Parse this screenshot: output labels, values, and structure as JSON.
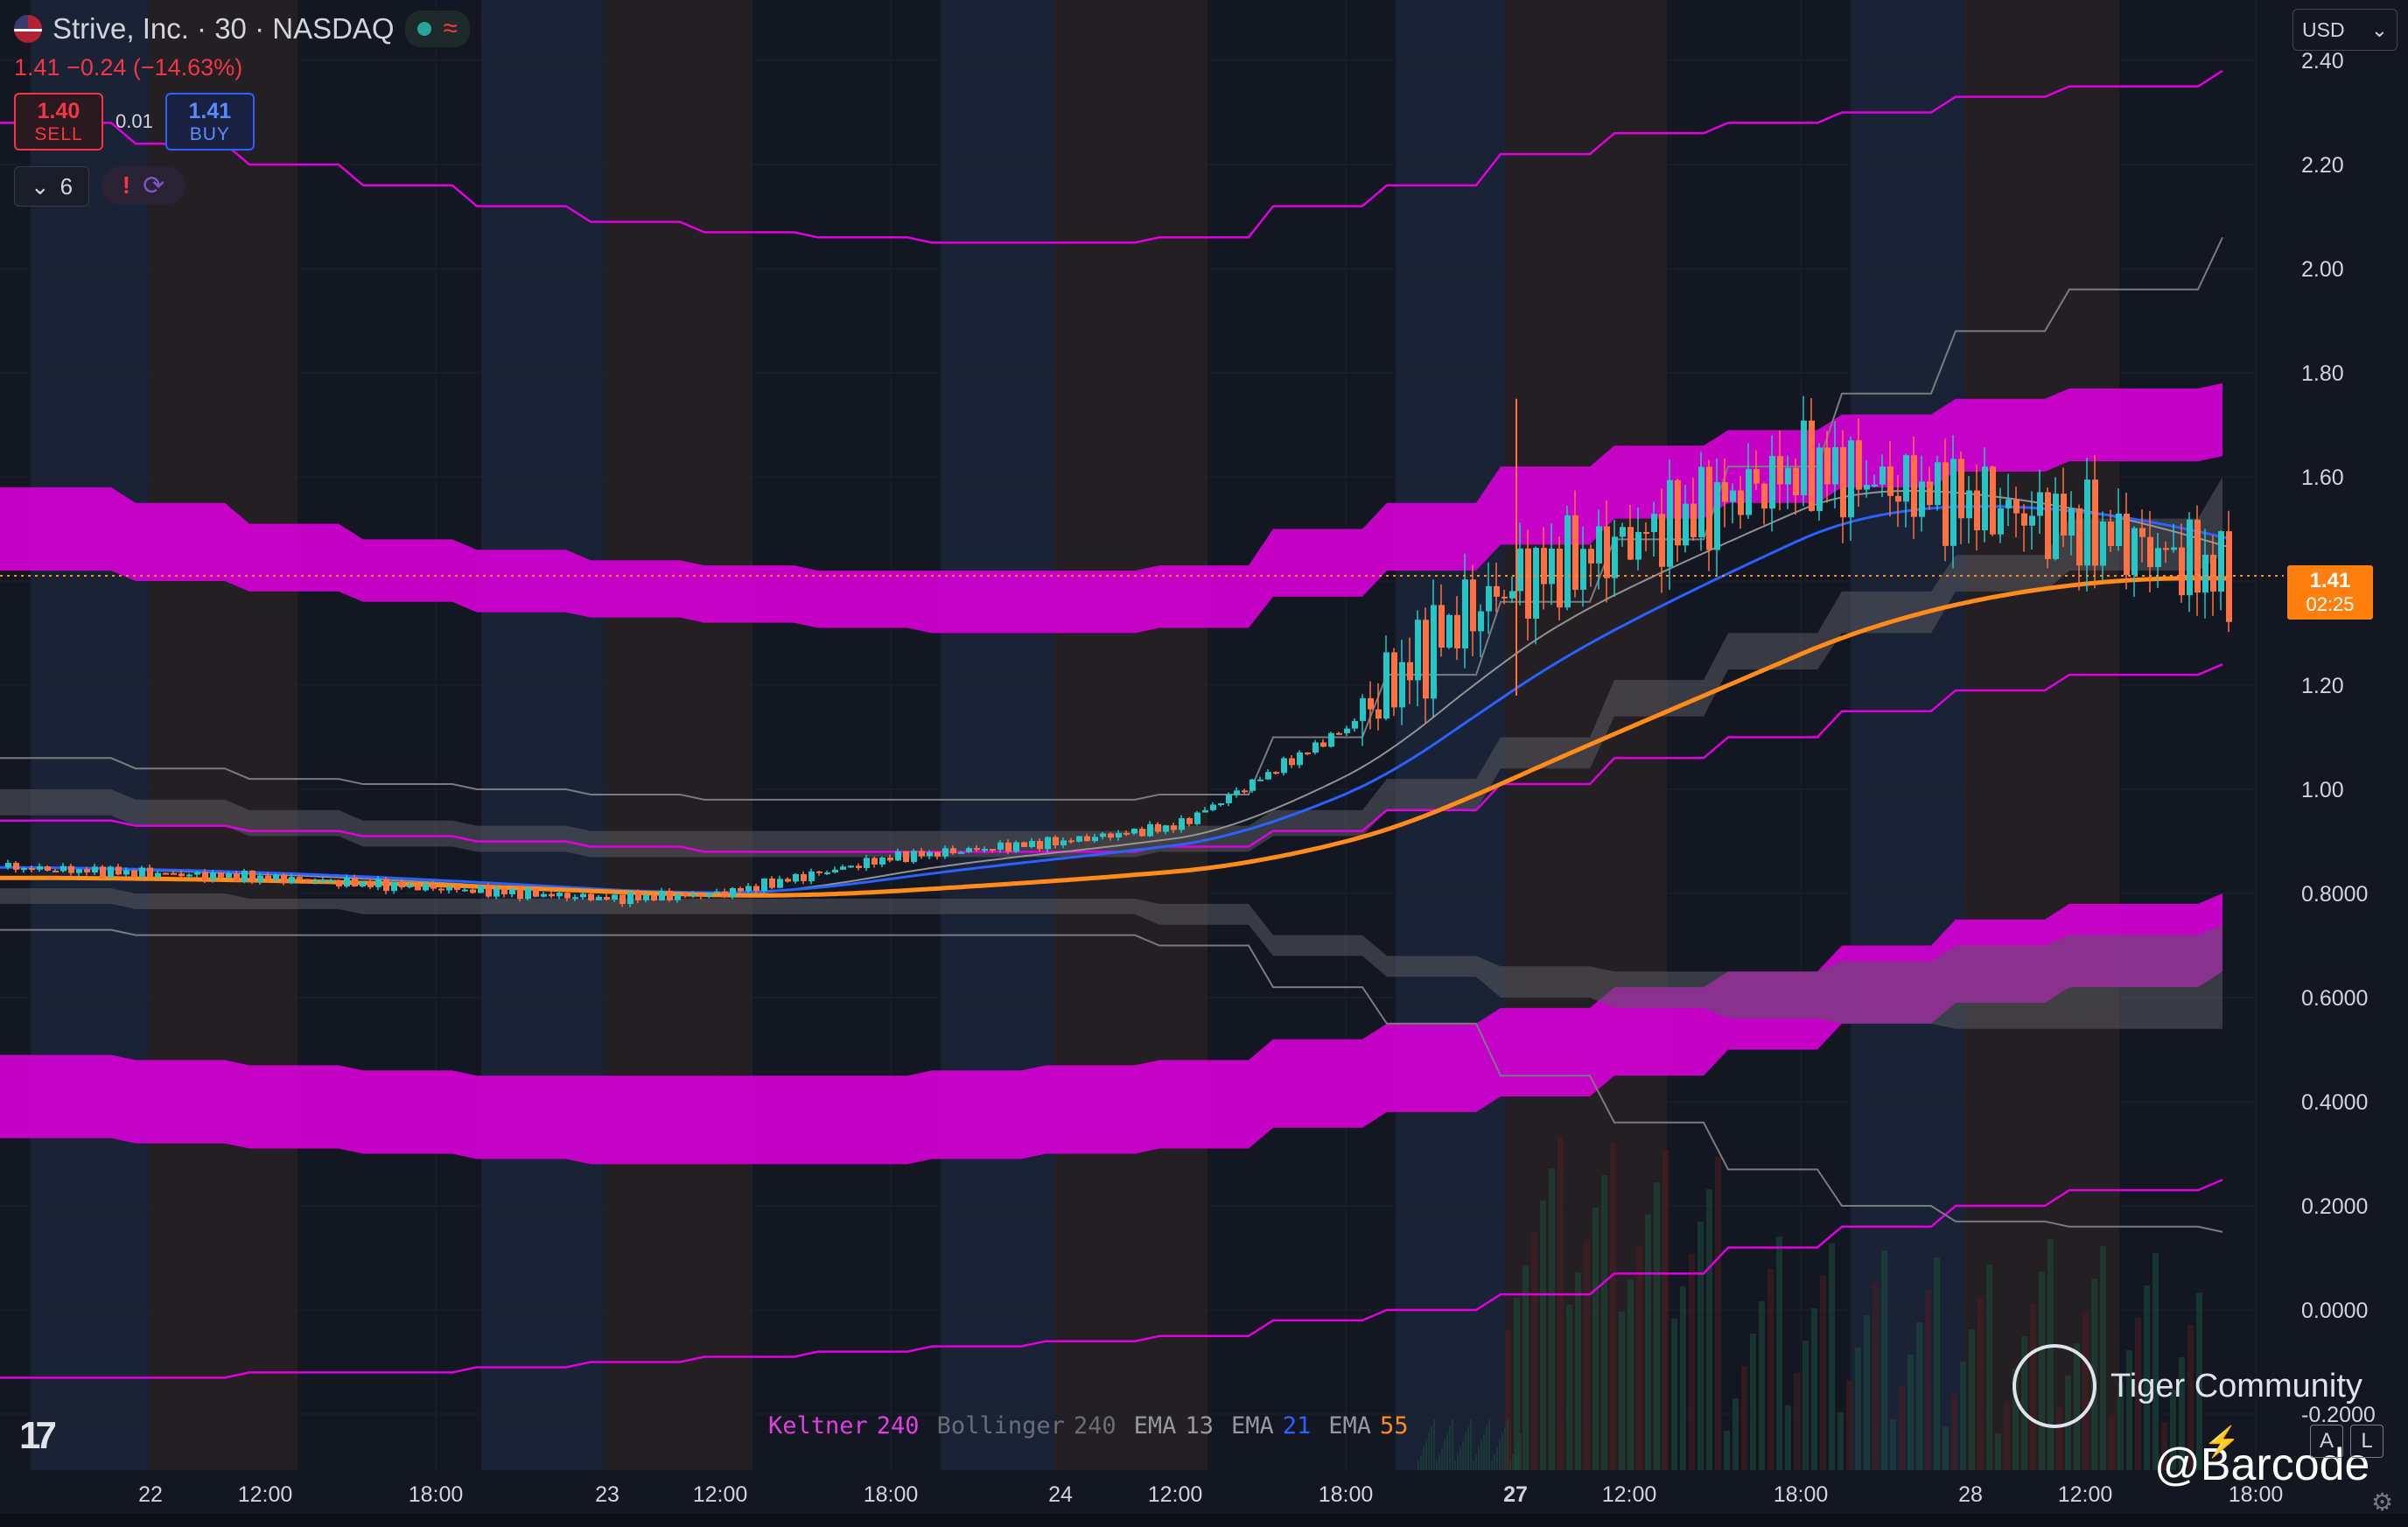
{
  "header": {
    "symbol_line": "Strive, Inc. · 30 · NASDAQ",
    "change_line": "1.41  −0.24 (−14.63%)",
    "sell_price": "1.40",
    "sell_label": "SELL",
    "spread": "0.01",
    "buy_price": "1.41",
    "buy_label": "BUY",
    "indicator_count": "6",
    "status_icons": [
      "market-open-icon",
      "delayed-data-icon"
    ],
    "indicator_status_icons": [
      "warning-icon",
      "sync-icon"
    ]
  },
  "currency": "USD",
  "price_tag": {
    "price": "1.41",
    "countdown": "02:25"
  },
  "legend": [
    {
      "name": "Keltner",
      "param": "240",
      "name_color": "#e040e0",
      "param_color": "#e040e0"
    },
    {
      "name": "Bollinger",
      "param": "240",
      "name_color": "#6a6d78",
      "param_color": "#6a6d78"
    },
    {
      "name": "EMA",
      "param": "13",
      "name_color": "#9598a1",
      "param_color": "#9598a1"
    },
    {
      "name": "EMA",
      "param": "21",
      "name_color": "#9598a1",
      "param_color": "#2962ff"
    },
    {
      "name": "EMA",
      "param": "55",
      "name_color": "#9598a1",
      "param_color": "#ff8c1a"
    }
  ],
  "watermark": {
    "name": "Tiger Community",
    "handle": "@Barcode"
  },
  "bottom_buttons": [
    "A",
    "L"
  ],
  "colors": {
    "up": "#26c6c6",
    "down": "#ff7043",
    "keltner": "#e000e0",
    "bollinger": "#6b6b70",
    "ema13": "#9e9e9e",
    "ema21": "#2962ff",
    "ema55": "#ff8c1a"
  },
  "chart_data": {
    "type": "candlestick",
    "timeframe": "30",
    "y_axis_labels": [
      "2.40",
      "2.20",
      "2.00",
      "1.80",
      "1.60",
      "1.40",
      "1.20",
      "1.00",
      "0.8000",
      "0.6000",
      "0.4000",
      "0.2000",
      "0.0000",
      "-0.2000"
    ],
    "x_axis_labels": [
      "22",
      "12:00",
      "18:00",
      "23",
      "12:00",
      "18:00",
      "24",
      "12:00",
      "18:00",
      "27",
      "12:00",
      "18:00",
      "28",
      "12:00",
      "18:00"
    ],
    "last_price": 1.41,
    "key_closes": [
      {
        "t": "22 open",
        "v": 0.85
      },
      {
        "t": "22 12:00",
        "v": 0.83
      },
      {
        "t": "23 open",
        "v": 0.79
      },
      {
        "t": "23 12:00",
        "v": 0.8
      },
      {
        "t": "23 18:00",
        "v": 0.87
      },
      {
        "t": "24 open",
        "v": 0.9
      },
      {
        "t": "24 12:00",
        "v": 0.93
      },
      {
        "t": "24 18:00",
        "v": 1.12
      },
      {
        "t": "24 late",
        "v": 1.31
      },
      {
        "t": "27 open",
        "v": 1.4
      },
      {
        "t": "27 12:00",
        "v": 1.48
      },
      {
        "t": "27 18:00",
        "v": 1.62
      },
      {
        "t": "28 open",
        "v": 1.55
      },
      {
        "t": "28 12:00",
        "v": 1.5
      },
      {
        "t": "28 last",
        "v": 1.41
      }
    ],
    "grid": true
  }
}
